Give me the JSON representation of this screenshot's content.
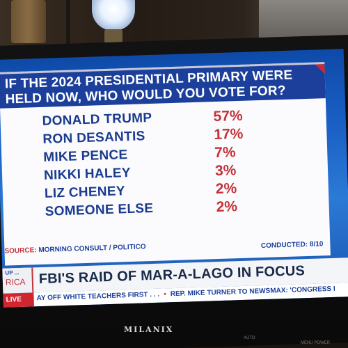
{
  "graphic": {
    "headline_line1": "IF THE 2024 PRESIDENTIAL PRIMARY WERE",
    "headline_line2": "HELD NOW, WHO WOULD YOU VOTE FOR?",
    "rows": [
      {
        "name": "DONALD TRUMP",
        "pct": "57%"
      },
      {
        "name": "RON DESANTIS",
        "pct": "17%"
      },
      {
        "name": "MIKE PENCE",
        "pct": "7%"
      },
      {
        "name": "NIKKI HALEY",
        "pct": "3%"
      },
      {
        "name": "LIZ CHENEY",
        "pct": "2%"
      },
      {
        "name": "SOMEONE ELSE",
        "pct": "2%"
      }
    ],
    "source_label": "SOURCE:",
    "source_value": "MORNING CONSULT / POLITICO",
    "conducted": "CONDUCTED: 8/10"
  },
  "lower_third": {
    "bug_top": "UP ...",
    "bug_bottom": "RICA",
    "title": "FBI'S RAID OF MAR-A-LAGO IN FOCUS",
    "live_label": "LIVE",
    "ticker_items": [
      "AY OFF WHITE TEACHERS FIRST . . .",
      "REP. MIKE TURNER TO NEWSMAX: 'CONGRESS I"
    ]
  },
  "tv": {
    "brand": "MILANIX",
    "auto_label": "AUTO",
    "menu_label": "MENU  POWER"
  },
  "colors": {
    "headline_bg": "#1b3f9a",
    "candidate_text": "#1a3b8f",
    "percent_text": "#c4323a",
    "accent_red": "#d0262f"
  }
}
